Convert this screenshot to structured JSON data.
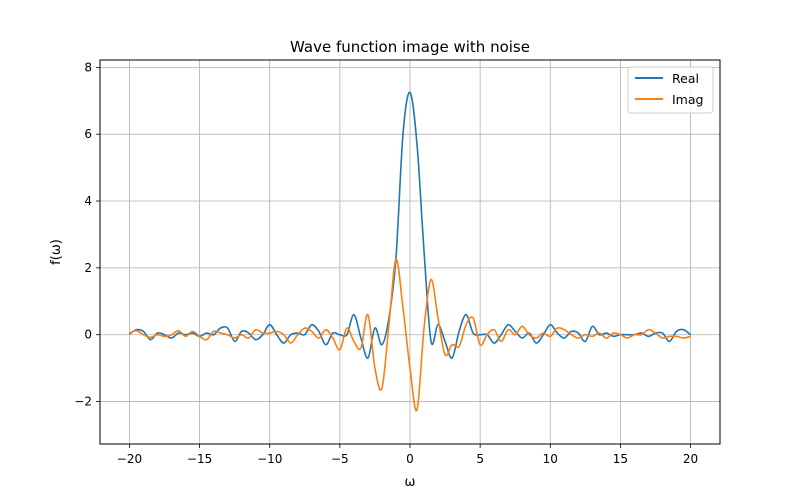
{
  "chart_data": {
    "type": "line",
    "title": "Wave function image with noise",
    "xlabel": "ω",
    "ylabel": "f(ω)",
    "xlim": [
      -22.1,
      22.1
    ],
    "ylim": [
      -3.27,
      8.22
    ],
    "xticks": [
      -20,
      -15,
      -10,
      -5,
      0,
      5,
      10,
      15,
      20
    ],
    "xtick_labels": [
      "−20",
      "−15",
      "−10",
      "−5",
      "0",
      "5",
      "10",
      "15",
      "20"
    ],
    "yticks": [
      -2,
      0,
      2,
      4,
      6,
      8
    ],
    "ytick_labels": [
      "−2",
      "0",
      "2",
      "4",
      "6",
      "8"
    ],
    "grid": true,
    "legend_position": "top-right",
    "series": [
      {
        "name": "Real",
        "color": "#1f77b4",
        "x": [
          -20,
          -19.5,
          -19,
          -18.5,
          -18,
          -17.5,
          -17,
          -16.5,
          -16,
          -15.5,
          -15,
          -14.5,
          -14,
          -13.5,
          -13,
          -12.5,
          -12,
          -11.5,
          -11,
          -10.5,
          -10,
          -9.5,
          -9,
          -8.5,
          -8,
          -7.5,
          -7,
          -6.5,
          -6,
          -5.5,
          -5,
          -4.5,
          -4,
          -3.5,
          -3,
          -2.5,
          -2,
          -1.5,
          -1,
          -0.5,
          0,
          0.5,
          1,
          1.5,
          2,
          2.5,
          3,
          3.5,
          4,
          4.5,
          5,
          5.5,
          6,
          6.5,
          7,
          7.5,
          8,
          8.5,
          9,
          9.5,
          10,
          10.5,
          11,
          11.5,
          12,
          12.5,
          13,
          13.5,
          14,
          14.5,
          15,
          15.5,
          16,
          16.5,
          17,
          17.5,
          18,
          18.5,
          19,
          19.5,
          20
        ],
        "values": [
          0.02,
          0.15,
          0.1,
          -0.15,
          0.05,
          0.0,
          -0.1,
          0.05,
          0.0,
          0.05,
          -0.05,
          0.05,
          0.0,
          0.2,
          0.2,
          -0.2,
          0.1,
          0.05,
          -0.15,
          0.0,
          0.3,
          0.0,
          -0.25,
          0.0,
          0.05,
          0.0,
          0.3,
          0.1,
          -0.3,
          0.05,
          0.0,
          0.0,
          0.6,
          -0.1,
          -0.7,
          0.2,
          -0.3,
          0.5,
          2.3,
          6.0,
          7.25,
          5.7,
          2.5,
          -0.2,
          0.3,
          -0.2,
          -0.7,
          0.1,
          0.6,
          0.05,
          0.0,
          0.0,
          -0.25,
          0.0,
          0.3,
          0.1,
          -0.1,
          0.05,
          -0.25,
          0.0,
          0.3,
          0.05,
          -0.1,
          0.1,
          0.05,
          -0.2,
          0.25,
          0.0,
          0.05,
          -0.05,
          0.0,
          0.0,
          0.0,
          0.05,
          -0.05,
          0.05,
          0.05,
          -0.2,
          0.1,
          0.15,
          0.0
        ]
      },
      {
        "name": "Imag",
        "color": "#ff7f0e",
        "x": [
          -20,
          -19.5,
          -19,
          -18.5,
          -18,
          -17.5,
          -17,
          -16.5,
          -16,
          -15.5,
          -15,
          -14.5,
          -14,
          -13.5,
          -13,
          -12.5,
          -12,
          -11.5,
          -11,
          -10.5,
          -10,
          -9.5,
          -9,
          -8.5,
          -8,
          -7.5,
          -7,
          -6.5,
          -6,
          -5.5,
          -5,
          -4.5,
          -4,
          -3.5,
          -3,
          -2.5,
          -2,
          -1.5,
          -1,
          -0.5,
          0,
          0.5,
          1,
          1.5,
          2,
          2.5,
          3,
          3.5,
          4,
          4.5,
          5,
          5.5,
          6,
          6.5,
          7,
          7.5,
          8,
          8.5,
          9,
          9.5,
          10,
          10.5,
          11,
          11.5,
          12,
          12.5,
          13,
          13.5,
          14,
          14.5,
          15,
          15.5,
          16,
          16.5,
          17,
          17.5,
          18,
          18.5,
          19,
          19.5,
          20
        ],
        "values": [
          0.05,
          0.12,
          0.0,
          -0.08,
          0.0,
          -0.05,
          0.0,
          0.12,
          -0.05,
          0.1,
          -0.05,
          -0.15,
          0.1,
          0.05,
          0.0,
          -0.1,
          0.0,
          -0.1,
          0.15,
          0.05,
          0.05,
          0.1,
          0.0,
          -0.25,
          0.0,
          0.2,
          0.1,
          -0.1,
          0.15,
          -0.1,
          -0.45,
          0.2,
          -0.2,
          -0.4,
          0.6,
          -1.0,
          -1.6,
          0.3,
          2.25,
          0.8,
          -1.0,
          -2.25,
          0.2,
          1.65,
          0.5,
          -0.6,
          -0.3,
          -0.35,
          0.3,
          0.5,
          -0.3,
          0.0,
          0.15,
          -0.2,
          0.15,
          0.0,
          0.25,
          0.0,
          -0.1,
          0.05,
          -0.05,
          0.2,
          0.15,
          0.0,
          -0.1,
          0.0,
          -0.05,
          0.05,
          -0.1,
          0.05,
          0.0,
          -0.1,
          0.0,
          0.0,
          0.15,
          0.05,
          -0.1,
          -0.05,
          -0.05,
          -0.1,
          -0.05
        ]
      }
    ]
  }
}
